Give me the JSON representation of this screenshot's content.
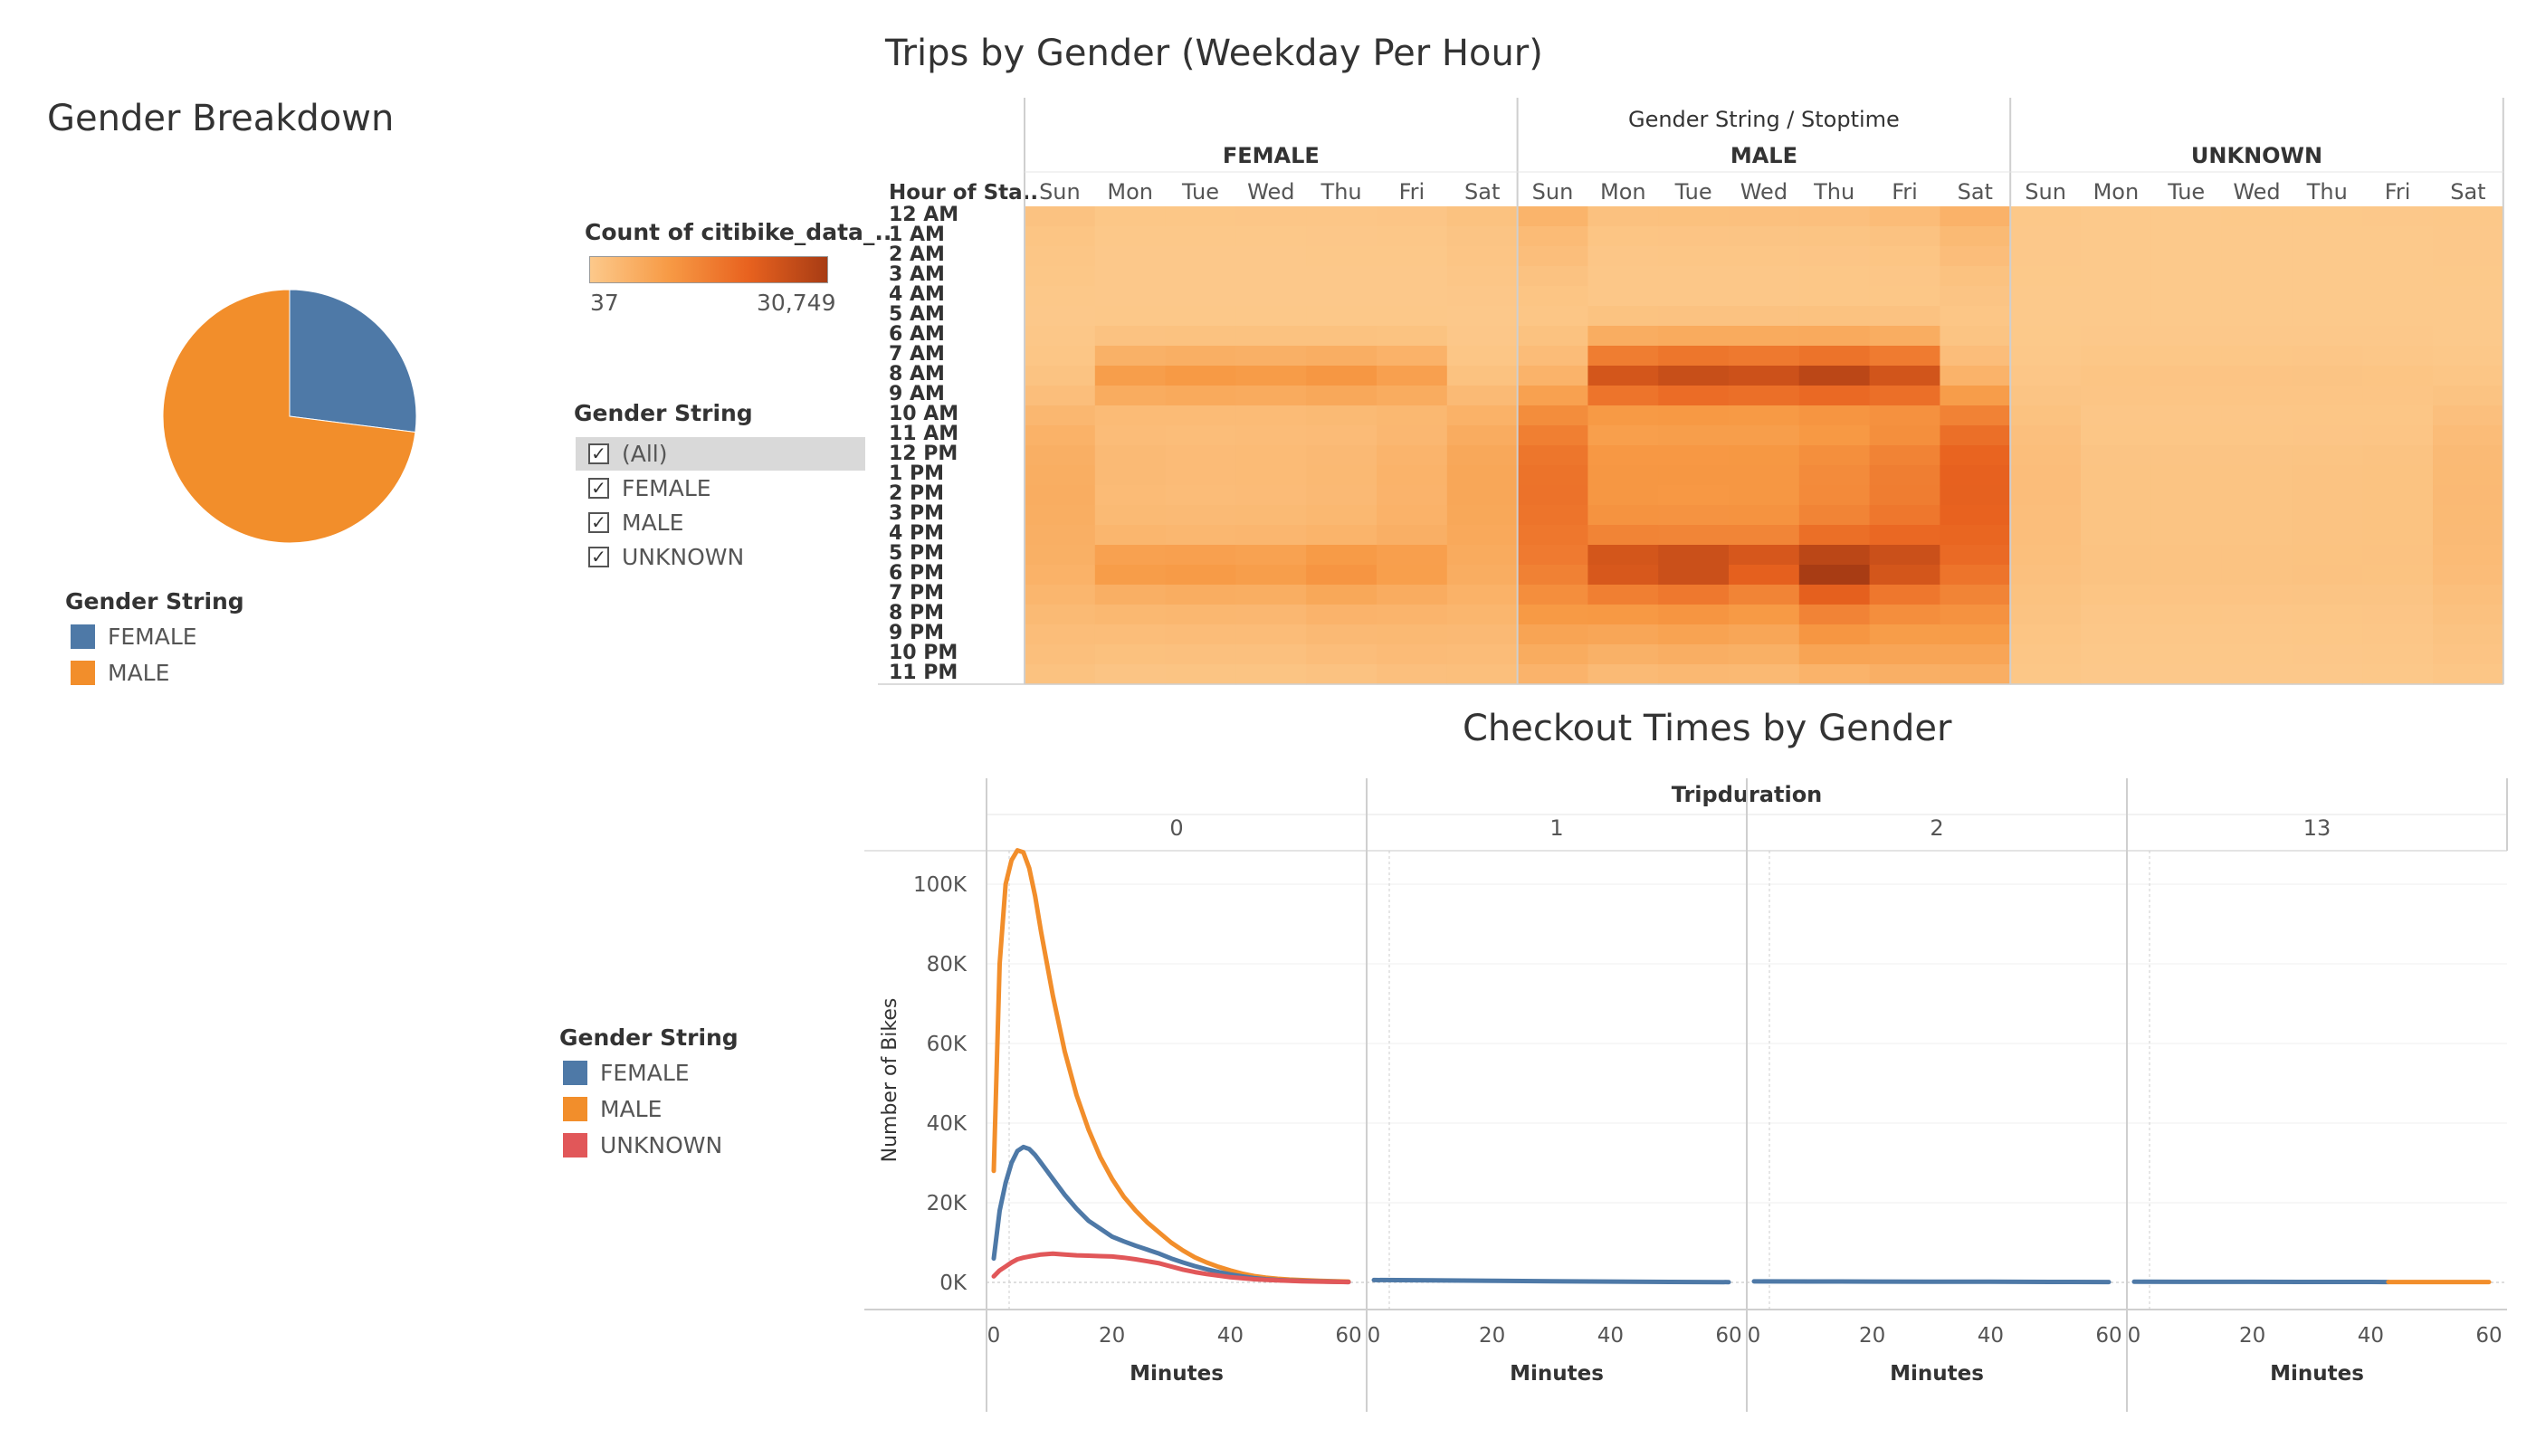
{
  "pie": {
    "title": "Gender Breakdown",
    "legend_title": "Gender String",
    "legend": [
      {
        "label": "FEMALE",
        "color": "#4e79a7"
      },
      {
        "label": "MALE",
        "color": "#f28e2b"
      }
    ]
  },
  "color_legend": {
    "title": "Count of citibike_data_..",
    "min_label": "37",
    "max_label": "30,749"
  },
  "filter": {
    "title": "Gender String",
    "items": [
      {
        "label": "(All)",
        "checked": true,
        "selected": true
      },
      {
        "label": "FEMALE",
        "checked": true,
        "selected": false
      },
      {
        "label": "MALE",
        "checked": true,
        "selected": false
      },
      {
        "label": "UNKNOWN",
        "checked": true,
        "selected": false
      }
    ]
  },
  "heatmap_title": "Trips by Gender (Weekday Per Hour)",
  "line_title": "Checkout Times by Gender",
  "line_legend": {
    "title": "Gender String",
    "items": [
      {
        "label": "FEMALE",
        "color": "#4e79a7"
      },
      {
        "label": "MALE",
        "color": "#f28e2b"
      },
      {
        "label": "UNKNOWN",
        "color": "#e15759"
      }
    ]
  },
  "chart_data": [
    {
      "type": "pie",
      "title": "Gender Breakdown",
      "slices": [
        {
          "name": "FEMALE",
          "value": 0.27,
          "color": "#4e79a7"
        },
        {
          "name": "MALE",
          "value": 0.73,
          "color": "#f28e2b"
        }
      ]
    },
    {
      "type": "heatmap",
      "title": "Trips by Gender (Weekday Per Hour)",
      "column_header": "Gender String / Stoptime",
      "row_header": "Hour of Sta..",
      "groups": [
        "FEMALE",
        "MALE",
        "UNKNOWN"
      ],
      "days": [
        "Sun",
        "Mon",
        "Tue",
        "Wed",
        "Thu",
        "Fri",
        "Sat"
      ],
      "hours": [
        "12 AM",
        "1 AM",
        "2 AM",
        "3 AM",
        "4 AM",
        "5 AM",
        "6 AM",
        "7 AM",
        "8 AM",
        "9 AM",
        "10 AM",
        "11 AM",
        "12 PM",
        "1 PM",
        "2 PM",
        "3 PM",
        "4 PM",
        "5 PM",
        "6 PM",
        "7 PM",
        "8 PM",
        "9 PM",
        "10 PM",
        "11 PM"
      ],
      "color_range": [
        37,
        30749
      ],
      "colors": [
        "#fcc98b",
        "#a83c14"
      ],
      "values": {
        "FEMALE": {
          "Sun": [
            1400,
            900,
            700,
            500,
            300,
            200,
            400,
            700,
            1200,
            2200,
            3600,
            4600,
            5200,
            5400,
            5500,
            5400,
            5200,
            5000,
            4600,
            3800,
            3000,
            2400,
            2000,
            1500
          ],
          "Mon": [
            500,
            300,
            200,
            150,
            150,
            300,
            1400,
            4800,
            8500,
            5800,
            2800,
            2500,
            2900,
            2900,
            2800,
            3000,
            3800,
            7800,
            8700,
            5200,
            3400,
            2400,
            1700,
            1000
          ],
          "Tue": [
            500,
            300,
            200,
            150,
            150,
            300,
            1500,
            5200,
            9300,
            6200,
            2800,
            2400,
            2700,
            2700,
            2600,
            2900,
            3600,
            8000,
            9000,
            5600,
            3600,
            2500,
            1800,
            1100
          ],
          "Wed": [
            550,
            320,
            220,
            160,
            150,
            300,
            1500,
            4900,
            8900,
            6000,
            2800,
            2500,
            2800,
            2800,
            2700,
            3000,
            3700,
            7700,
            8500,
            5400,
            3500,
            2500,
            1800,
            1100
          ],
          "Thu": [
            600,
            350,
            250,
            180,
            160,
            320,
            1500,
            5300,
            9800,
            6500,
            3000,
            2700,
            3100,
            3200,
            3100,
            3400,
            4200,
            9000,
            10200,
            6600,
            4300,
            3100,
            2300,
            1400
          ],
          "Fri": [
            750,
            400,
            280,
            200,
            170,
            300,
            1300,
            4500,
            8000,
            5800,
            3400,
            3500,
            4100,
            4400,
            4300,
            4500,
            5100,
            8200,
            8300,
            5700,
            4100,
            3200,
            2700,
            1900
          ],
          "Sat": [
            1500,
            1000,
            800,
            600,
            350,
            220,
            350,
            700,
            1500,
            2900,
            4600,
            5700,
            6500,
            6700,
            6800,
            6600,
            6300,
            6000,
            5500,
            4600,
            3800,
            3100,
            2600,
            2000
          ]
        },
        "MALE": {
          "Sun": [
            4200,
            2800,
            2100,
            1400,
            900,
            700,
            1500,
            2600,
            4400,
            7800,
            11800,
            14500,
            16200,
            16800,
            16900,
            16600,
            16000,
            15300,
            14000,
            11500,
            9200,
            7300,
            5800,
            4300
          ],
          "Mon": [
            1600,
            900,
            600,
            400,
            450,
            1300,
            5500,
            14800,
            23500,
            16500,
            9200,
            8300,
            9600,
            9900,
            9800,
            10600,
            13500,
            23500,
            22800,
            14500,
            9500,
            6900,
            4800,
            2900
          ],
          "Tue": [
            1700,
            950,
            650,
            450,
            480,
            1400,
            6000,
            16200,
            25500,
            18000,
            9400,
            8400,
            9600,
            9800,
            9600,
            10500,
            13300,
            25000,
            25000,
            15800,
            10300,
            7500,
            5300,
            3300
          ],
          "Wed": [
            1800,
            1000,
            700,
            470,
            480,
            1400,
            5900,
            15500,
            24700,
            17500,
            9300,
            8500,
            9700,
            9900,
            9800,
            10600,
            13300,
            23000,
            20500,
            13500,
            9300,
            6900,
            5000,
            3200
          ],
          "Thu": [
            1900,
            1100,
            760,
            520,
            500,
            1450,
            6100,
            16800,
            27500,
            18700,
            10300,
            9400,
            11400,
            12200,
            12300,
            13500,
            17600,
            27500,
            30700,
            20500,
            13600,
            10000,
            7300,
            4400
          ],
          "Fri": [
            2600,
            1400,
            900,
            600,
            520,
            1350,
            5600,
            15200,
            23800,
            17500,
            11000,
            11400,
            13700,
            14700,
            14900,
            16000,
            18800,
            25000,
            23500,
            16000,
            11500,
            8700,
            7000,
            5100
          ],
          "Sat": [
            4500,
            3000,
            2300,
            1500,
            1000,
            700,
            1100,
            2300,
            4400,
            8600,
            13800,
            17500,
            19600,
            20200,
            20400,
            20000,
            19300,
            18400,
            16600,
            13500,
            10800,
            8800,
            7000,
            5300
          ]
        },
        "UNKNOWN": {
          "Sun": [
            300,
            200,
            160,
            120,
            80,
            60,
            110,
            250,
            550,
            1000,
            1500,
            1900,
            2200,
            2300,
            2300,
            2200,
            2100,
            2000,
            1800,
            1500,
            1200,
            900,
            700,
            500
          ],
          "Mon": [
            100,
            60,
            40,
            37,
            37,
            60,
            200,
            500,
            900,
            800,
            600,
            700,
            1000,
            1100,
            1100,
            1100,
            1100,
            1200,
            1200,
            900,
            600,
            400,
            300,
            200
          ],
          "Tue": [
            100,
            60,
            40,
            37,
            37,
            60,
            200,
            520,
            950,
            850,
            600,
            700,
            1000,
            1100,
            1100,
            1100,
            1100,
            1250,
            1250,
            950,
            650,
            450,
            300,
            200
          ],
          "Wed": [
            110,
            60,
            40,
            37,
            37,
            60,
            200,
            500,
            920,
            830,
            600,
            700,
            1000,
            1100,
            1100,
            1100,
            1100,
            1220,
            1200,
            920,
            620,
            430,
            300,
            200
          ],
          "Thu": [
            120,
            70,
            45,
            37,
            37,
            60,
            210,
            530,
            980,
            870,
            650,
            750,
            1100,
            1200,
            1200,
            1200,
            1200,
            1300,
            1350,
            1000,
            700,
            500,
            350,
            230
          ],
          "Fri": [
            150,
            80,
            50,
            40,
            37,
            60,
            190,
            480,
            900,
            820,
            650,
            800,
            1200,
            1300,
            1300,
            1300,
            1300,
            1350,
            1300,
            1000,
            750,
            550,
            420,
            300
          ],
          "Sat": [
            320,
            220,
            170,
            120,
            80,
            60,
            100,
            260,
            650,
            1200,
            1900,
            2500,
            2900,
            3000,
            3100,
            3000,
            2900,
            2800,
            2500,
            2000,
            1600,
            1200,
            950,
            700
          ]
        }
      }
    },
    {
      "type": "line",
      "title": "Checkout Times by Gender",
      "panel_header": "Tripduration",
      "panels": [
        "0",
        "1",
        "2",
        "13"
      ],
      "xlabel": "Minutes",
      "ylabel": "Number of Bikes",
      "xlim": [
        0,
        60
      ],
      "xticks": [
        0,
        20,
        40,
        60
      ],
      "ylim": [
        0,
        110000
      ],
      "yticks": [
        0,
        20000,
        40000,
        60000,
        80000,
        100000
      ],
      "ytick_labels": [
        "0K",
        "20K",
        "40K",
        "60K",
        "80K",
        "100K"
      ],
      "series": [
        {
          "name": "MALE",
          "color": "#f28e2b",
          "panel": "0",
          "x": [
            0,
            1,
            2,
            3,
            4,
            5,
            6,
            7,
            8,
            9,
            10,
            12,
            14,
            16,
            18,
            20,
            22,
            24,
            26,
            28,
            30,
            32,
            34,
            36,
            38,
            40,
            42,
            44,
            46,
            48,
            50,
            55,
            60
          ],
          "y": [
            28000,
            80000,
            100000,
            106000,
            108500,
            108000,
            104000,
            97000,
            88000,
            80000,
            72000,
            58000,
            47000,
            38500,
            31500,
            26000,
            21500,
            18000,
            15000,
            12500,
            10000,
            8000,
            6300,
            5000,
            3900,
            3000,
            2200,
            1600,
            1200,
            900,
            700,
            400,
            200
          ]
        },
        {
          "name": "FEMALE",
          "color": "#4e79a7",
          "panel": "0",
          "x": [
            0,
            1,
            2,
            3,
            4,
            5,
            6,
            7,
            8,
            9,
            10,
            12,
            14,
            16,
            18,
            20,
            22,
            24,
            26,
            28,
            30,
            32,
            34,
            36,
            38,
            40,
            42,
            44,
            46,
            48,
            50,
            55,
            60
          ],
          "y": [
            6000,
            18000,
            25000,
            30000,
            33000,
            34000,
            33500,
            32000,
            30000,
            28000,
            26000,
            22000,
            18500,
            15500,
            13500,
            11500,
            10300,
            9200,
            8200,
            7200,
            6000,
            5000,
            4100,
            3300,
            2600,
            2000,
            1500,
            1100,
            800,
            600,
            450,
            250,
            100
          ]
        },
        {
          "name": "UNKNOWN",
          "color": "#e15759",
          "panel": "0",
          "x": [
            0,
            1,
            2,
            3,
            4,
            5,
            6,
            8,
            10,
            12,
            14,
            16,
            18,
            20,
            22,
            24,
            26,
            28,
            30,
            32,
            34,
            36,
            38,
            40,
            44,
            48,
            52,
            56,
            60
          ],
          "y": [
            1500,
            3000,
            4000,
            5000,
            5800,
            6200,
            6500,
            7000,
            7200,
            7000,
            6800,
            6700,
            6600,
            6500,
            6200,
            5800,
            5300,
            4800,
            4000,
            3200,
            2600,
            2100,
            1700,
            1300,
            800,
            500,
            300,
            150,
            80
          ]
        },
        {
          "name": "FEMALE",
          "color": "#4e79a7",
          "panel": "1",
          "x": [
            0,
            10,
            20,
            30,
            40,
            50,
            60
          ],
          "y": [
            600,
            500,
            400,
            300,
            200,
            120,
            60
          ]
        },
        {
          "name": "FEMALE",
          "color": "#4e79a7",
          "panel": "2",
          "x": [
            0,
            10,
            20,
            30,
            40,
            50,
            60
          ],
          "y": [
            250,
            220,
            200,
            180,
            150,
            120,
            100
          ]
        },
        {
          "name": "FEMALE",
          "color": "#4e79a7",
          "panel": "13",
          "x": [
            0,
            10,
            20,
            30,
            40,
            43
          ],
          "y": [
            150,
            140,
            130,
            120,
            110,
            100
          ]
        },
        {
          "name": "MALE",
          "color": "#f28e2b",
          "panel": "13",
          "x": [
            43,
            50,
            60
          ],
          "y": [
            100,
            100,
            100
          ]
        }
      ]
    }
  ]
}
